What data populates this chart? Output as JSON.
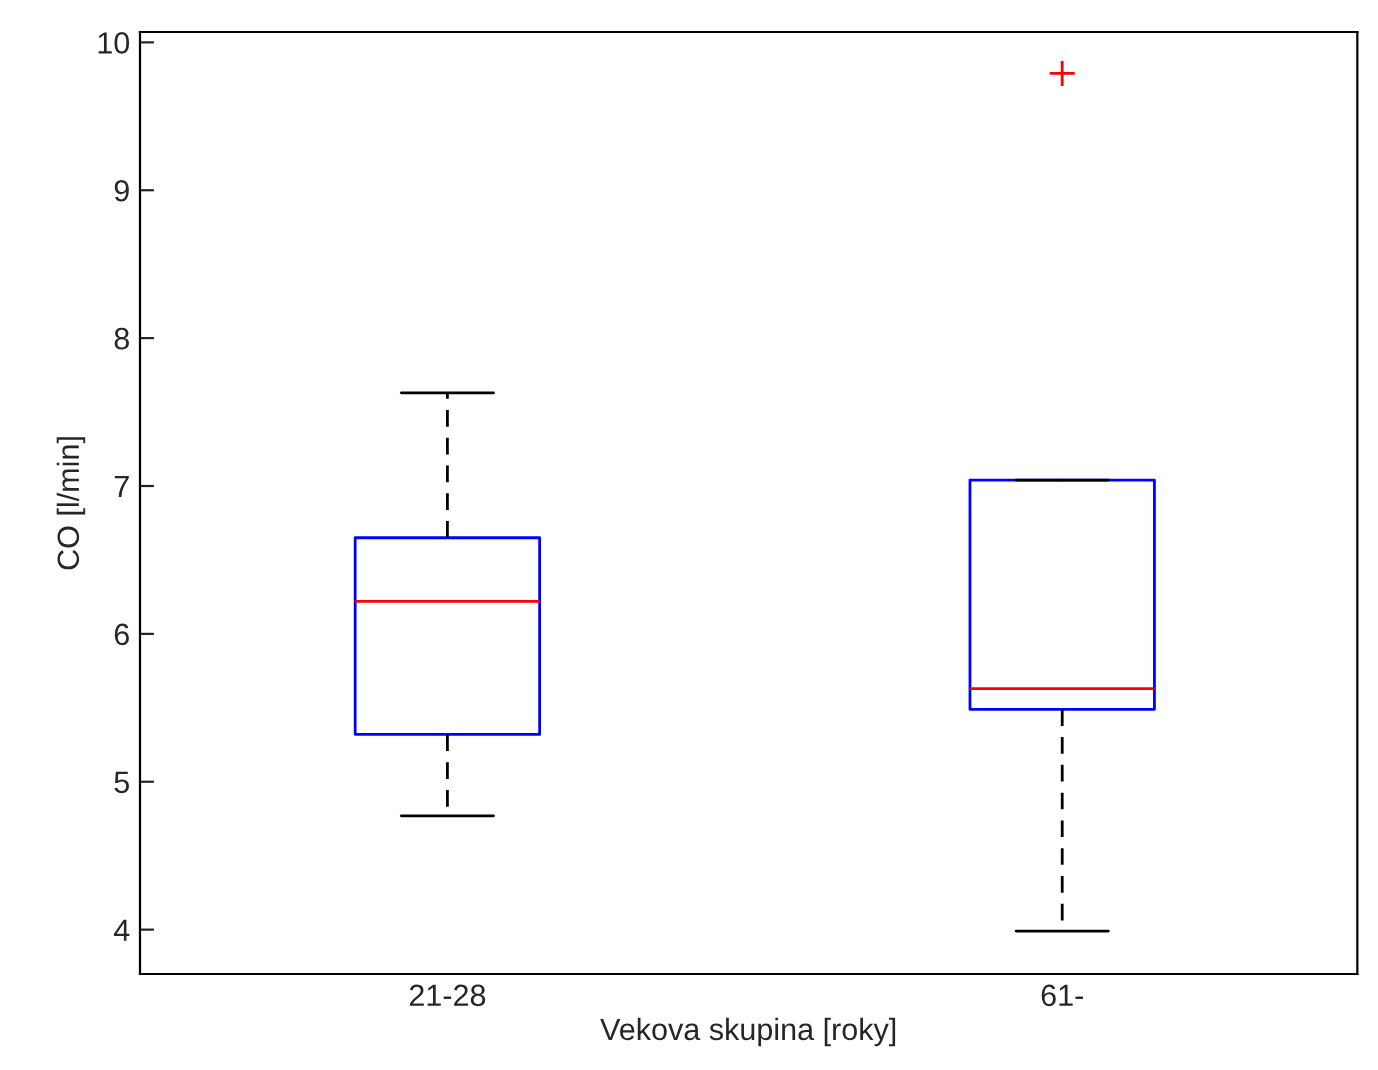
{
  "chart_data": {
    "type": "box",
    "xlabel": "Vekova skupina [roky]",
    "ylabel": "CO [l/min]",
    "categories": [
      "21-28",
      "61-"
    ],
    "boxes": [
      {
        "low": 4.77,
        "q1": 5.32,
        "median": 6.22,
        "q3": 6.65,
        "high": 7.63
      },
      {
        "low": 3.99,
        "q1": 5.49,
        "median": 5.63,
        "q3": 7.04,
        "high": 7.04,
        "outliers": [
          9.79
        ]
      }
    ],
    "ylim": [
      3.7,
      10.07
    ],
    "yticks": [
      4,
      5,
      6,
      7,
      8,
      9,
      10
    ],
    "grid": false
  }
}
